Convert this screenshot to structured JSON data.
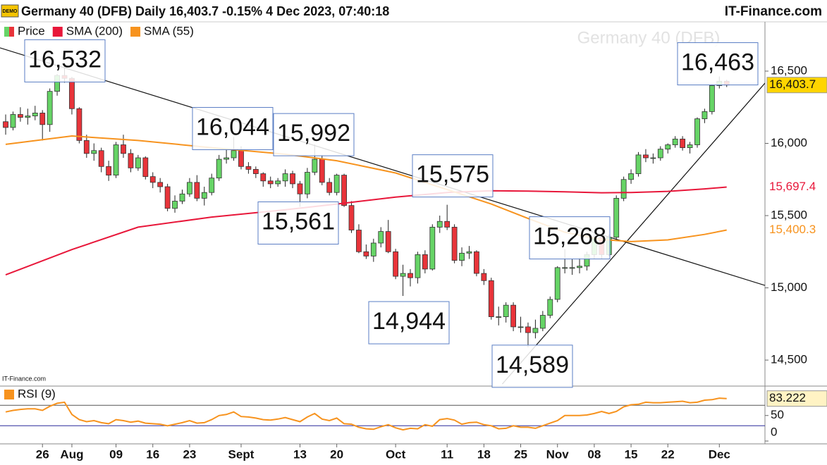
{
  "header": {
    "badge": "DEMO",
    "title": "Germany 40 (DFB) Daily 16,403.7 -0.15% 4 Dec 2023, 07:40:18",
    "site": "IT-Finance.com"
  },
  "chart_data": [
    {
      "type": "candlestick",
      "watermark": "Germany 40 (DFB)",
      "credit": "IT-Finance.com",
      "xlim": [
        -0.77,
        103.2
      ],
      "ylim": [
        14320,
        16846
      ],
      "yticks": [
        {
          "value": 14500,
          "label": "14,500"
        },
        {
          "value": 15000,
          "label": "15,000"
        },
        {
          "value": 15500,
          "label": "15,500"
        },
        {
          "value": 16000,
          "label": "16,000"
        },
        {
          "value": 16500,
          "label": "16,500"
        }
      ],
      "series": [
        {
          "name": "Price",
          "color": "#66d466",
          "down_color": "#e8343a",
          "last_label": "16,403.7",
          "last_color": "#ffd500",
          "values": [
            [
              16150,
              16200,
              16060,
              16110
            ],
            [
              16110,
              16220,
              16090,
              16200
            ],
            [
              16200,
              16250,
              16150,
              16180
            ],
            [
              16180,
              16240,
              16130,
              16190
            ],
            [
              16190,
              16260,
              16160,
              16210
            ],
            [
              16210,
              16230,
              16020,
              16130
            ],
            [
              16130,
              16380,
              16080,
              16360
            ],
            [
              16360,
              16480,
              16330,
              16470
            ],
            [
              16470,
              16532,
              16420,
              16450
            ],
            [
              16450,
              16460,
              16200,
              16240
            ],
            [
              16240,
              16250,
              16000,
              16020
            ],
            [
              16020,
              16060,
              15900,
              15930
            ],
            [
              15930,
              16000,
              15880,
              15950
            ],
            [
              15950,
              15970,
              15800,
              15840
            ],
            [
              15840,
              15880,
              15740,
              15780
            ],
            [
              15780,
              16010,
              15760,
              15990
            ],
            [
              15990,
              16060,
              15900,
              15930
            ],
            [
              15930,
              15960,
              15800,
              15830
            ],
            [
              15830,
              15920,
              15810,
              15900
            ],
            [
              15900,
              15910,
              15750,
              15770
            ],
            [
              15770,
              15800,
              15690,
              15730
            ],
            [
              15730,
              15760,
              15660,
              15700
            ],
            [
              15700,
              15720,
              15530,
              15550
            ],
            [
              15550,
              15640,
              15520,
              15600
            ],
            [
              15600,
              15680,
              15580,
              15650
            ],
            [
              15650,
              15760,
              15630,
              15730
            ],
            [
              15730,
              15780,
              15600,
              15620
            ],
            [
              15620,
              15700,
              15570,
              15660
            ],
            [
              15660,
              15790,
              15640,
              15760
            ],
            [
              15760,
              15920,
              15740,
              15890
            ],
            [
              15890,
              15960,
              15860,
              15900
            ],
            [
              15900,
              16044,
              15880,
              15950
            ],
            [
              15950,
              15980,
              15820,
              15840
            ],
            [
              15840,
              15870,
              15790,
              15820
            ],
            [
              15820,
              15840,
              15760,
              15790
            ],
            [
              15790,
              15800,
              15700,
              15740
            ],
            [
              15740,
              15770,
              15690,
              15720
            ],
            [
              15720,
              15760,
              15700,
              15740
            ],
            [
              15740,
              15820,
              15700,
              15790
            ],
            [
              15790,
              15810,
              15690,
              15720
            ],
            [
              15720,
              15740,
              15561,
              15650
            ],
            [
              15650,
              15830,
              15620,
              15800
            ],
            [
              15800,
              15992,
              15780,
              15890
            ],
            [
              15890,
              15920,
              15710,
              15730
            ],
            [
              15730,
              15760,
              15640,
              15660
            ],
            [
              15660,
              15790,
              15640,
              15780
            ],
            [
              15780,
              15790,
              15560,
              15570
            ],
            [
              15570,
              15600,
              15380,
              15400
            ],
            [
              15400,
              15440,
              15240,
              15250
            ],
            [
              15250,
              15300,
              15200,
              15220
            ],
            [
              15220,
              15340,
              15180,
              15310
            ],
            [
              15310,
              15420,
              15280,
              15390
            ],
            [
              15390,
              15470,
              15240,
              15250
            ],
            [
              15250,
              15270,
              15060,
              15080
            ],
            [
              15080,
              15160,
              14944,
              15100
            ],
            [
              15100,
              15130,
              15010,
              15070
            ],
            [
              15070,
              15250,
              15030,
              15230
            ],
            [
              15230,
              15260,
              15100,
              15130
            ],
            [
              15130,
              15440,
              15120,
              15420
            ],
            [
              15420,
              15500,
              15380,
              15460
            ],
            [
              15460,
              15575,
              15400,
              15420
            ],
            [
              15420,
              15440,
              15170,
              15190
            ],
            [
              15190,
              15280,
              15150,
              15240
            ],
            [
              15240,
              15290,
              15200,
              15250
            ],
            [
              15250,
              15260,
              15080,
              15100
            ],
            [
              15100,
              15130,
              15020,
              15050
            ],
            [
              15050,
              15070,
              14780,
              14800
            ],
            [
              14800,
              14870,
              14740,
              14800
            ],
            [
              14800,
              14900,
              14760,
              14880
            ],
            [
              14880,
              14900,
              14700,
              14730
            ],
            [
              14730,
              14800,
              14690,
              14730
            ],
            [
              14730,
              14760,
              14589,
              14690
            ],
            [
              14690,
              14780,
              14650,
              14720
            ],
            [
              14720,
              14840,
              14700,
              14810
            ],
            [
              14810,
              14940,
              14790,
              14920
            ],
            [
              14920,
              15150,
              14900,
              15140
            ],
            [
              15140,
              15268,
              15100,
              15140
            ],
            [
              15140,
              15200,
              15090,
              15140
            ],
            [
              15140,
              15210,
              15100,
              15150
            ],
            [
              15150,
              15250,
              15120,
              15230
            ],
            [
              15230,
              15380,
              15200,
              15350
            ],
            [
              15350,
              15380,
              15200,
              15230
            ],
            [
              15230,
              15370,
              15220,
              15350
            ],
            [
              15350,
              15640,
              15330,
              15620
            ],
            [
              15620,
              15770,
              15600,
              15750
            ],
            [
              15750,
              15820,
              15720,
              15790
            ],
            [
              15790,
              15940,
              15770,
              15920
            ],
            [
              15920,
              15960,
              15870,
              15900
            ],
            [
              15900,
              15930,
              15860,
              15900
            ],
            [
              15900,
              15980,
              15880,
              15960
            ],
            [
              15960,
              16000,
              15930,
              15990
            ],
            [
              15990,
              16050,
              15970,
              16030
            ],
            [
              16030,
              16050,
              15950,
              15970
            ],
            [
              15970,
              16010,
              15930,
              15990
            ],
            [
              15990,
              16180,
              15970,
              16170
            ],
            [
              16170,
              16240,
              16140,
              16220
            ],
            [
              16220,
              16410,
              16200,
              16400
            ],
            [
              16400,
              16463,
              16380,
              16430
            ],
            [
              16430,
              16440,
              16390,
              16403.7
            ]
          ]
        },
        {
          "name": "SMA (200)",
          "color": "#e8173a",
          "last_label": "15,697.4",
          "x": [
            0,
            9,
            18,
            28,
            38,
            45,
            53,
            60,
            66,
            71,
            76,
            81,
            85,
            90,
            95,
            98
          ],
          "values": [
            15090,
            15265,
            15420,
            15490,
            15540,
            15580,
            15628,
            15660,
            15672,
            15670,
            15665,
            15658,
            15660,
            15668,
            15685,
            15697.4
          ]
        },
        {
          "name": "SMA (55)",
          "color": "#f7931e",
          "last_label": "15,400.3",
          "x": [
            0,
            9,
            18,
            28,
            38,
            45,
            53,
            60,
            66,
            71,
            76,
            81,
            85,
            90,
            95,
            98
          ],
          "values": [
            15993,
            16051,
            16020,
            15970,
            15925,
            15880,
            15795,
            15680,
            15580,
            15480,
            15385,
            15335,
            15320,
            15332,
            15370,
            15400.3
          ]
        }
      ],
      "trendlines": [
        {
          "color": "#111111",
          "x": [
            -0.77,
            103.2
          ],
          "values": [
            16661,
            15017
          ]
        },
        {
          "color": "#111111",
          "x": [
            67.5,
            103.2
          ],
          "values": [
            14334,
            16417
          ]
        }
      ],
      "annotations": [
        {
          "value": 16532,
          "label": "16,532"
        },
        {
          "value": 16044,
          "label": "16,044"
        },
        {
          "value": 15992,
          "label": "15,992"
        },
        {
          "value": 15561,
          "label": "15,561"
        },
        {
          "value": 15575,
          "label": "15,575"
        },
        {
          "value": 14944,
          "label": "14,944"
        },
        {
          "value": 15268,
          "label": "15,268"
        },
        {
          "value": 14589,
          "label": "14,589"
        },
        {
          "value": 16463,
          "label": "16,463"
        }
      ]
    },
    {
      "type": "line",
      "xlim": [
        -0.77,
        103.2
      ],
      "ylim": [
        -5.5,
        107.6
      ],
      "yticks": [
        0,
        50
      ],
      "levels": [
        {
          "value": 70,
          "color": "#555555"
        },
        {
          "value": 30,
          "color": "#2a2a9a"
        }
      ],
      "xticks": [
        {
          "value": 5,
          "label": "26"
        },
        {
          "value": 9,
          "label": "Aug"
        },
        {
          "value": 15,
          "label": "09"
        },
        {
          "value": 20,
          "label": "16"
        },
        {
          "value": 25,
          "label": "23"
        },
        {
          "value": 32,
          "label": "Sept"
        },
        {
          "value": 40,
          "label": "13"
        },
        {
          "value": 45,
          "label": "20"
        },
        {
          "value": 53,
          "label": "Oct"
        },
        {
          "value": 60,
          "label": "11"
        },
        {
          "value": 65,
          "label": "18"
        },
        {
          "value": 70,
          "label": "25"
        },
        {
          "value": 75,
          "label": "Nov"
        },
        {
          "value": 80,
          "label": "08"
        },
        {
          "value": 85,
          "label": "15"
        },
        {
          "value": 90,
          "label": "22"
        },
        {
          "value": 97,
          "label": "Dec"
        }
      ],
      "series": [
        {
          "name": "RSI (9)",
          "color": "#f7931e",
          "last_label": "83.222",
          "last_color": "#fff3c4",
          "values": [
            57,
            60,
            62,
            63,
            63,
            60,
            68,
            74,
            76,
            52,
            42,
            38,
            40,
            36,
            34,
            42,
            40,
            37,
            39,
            35,
            34,
            33,
            30,
            33,
            36,
            40,
            35,
            36,
            42,
            50,
            52,
            57,
            48,
            47,
            45,
            42,
            41,
            43,
            46,
            42,
            38,
            47,
            54,
            43,
            40,
            45,
            34,
            33,
            27,
            24,
            23,
            28,
            32,
            26,
            22,
            25,
            24,
            32,
            29,
            42,
            44,
            41,
            33,
            36,
            37,
            32,
            30,
            24,
            25,
            30,
            27,
            27,
            25,
            30,
            35,
            40,
            50,
            50,
            50,
            51,
            54,
            58,
            54,
            58,
            67,
            71,
            72,
            76,
            75,
            75,
            76,
            77,
            78,
            75,
            76,
            80,
            81,
            84,
            83.222
          ]
        }
      ]
    }
  ]
}
